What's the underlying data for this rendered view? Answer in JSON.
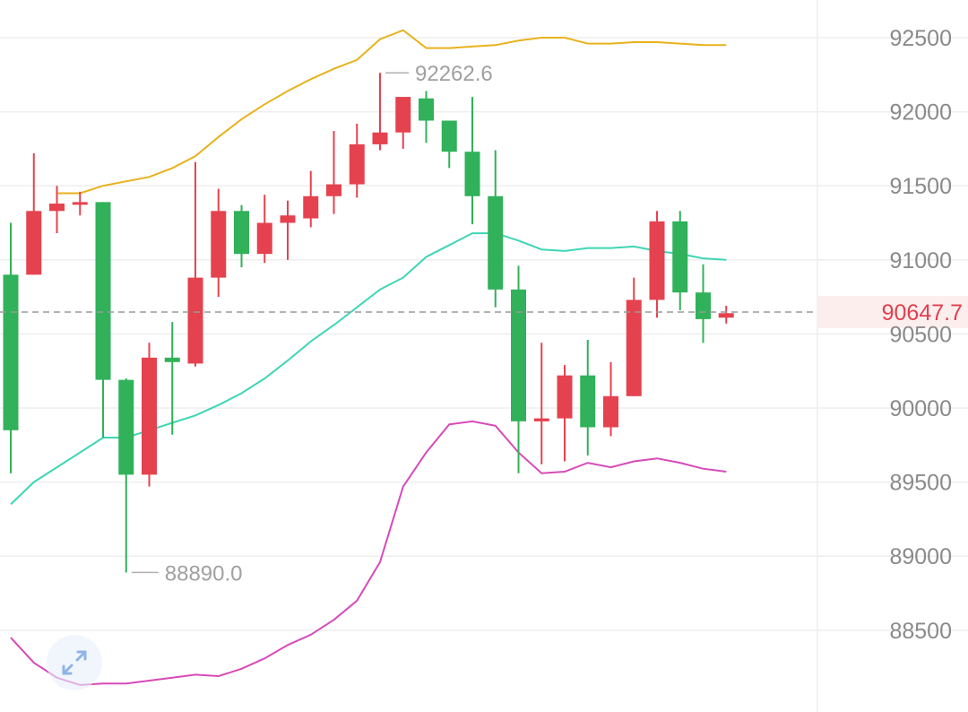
{
  "chart_data": {
    "type": "candlestick",
    "y_axis": {
      "range": [
        88150,
        92750
      ],
      "ticks": [
        92500,
        92000,
        91500,
        91000,
        90500,
        90000,
        89500,
        89000,
        88500
      ],
      "position": "right"
    },
    "grid": true,
    "last_price": {
      "value": 90647.7,
      "label": "90647.7"
    },
    "max_label": {
      "value": 92262.6,
      "label": "92262.6"
    },
    "min_label": {
      "value": 88890.0,
      "label": "88890.0"
    },
    "candles": [
      {
        "o": 90900,
        "h": 91250,
        "l": 89560,
        "c": 89850
      },
      {
        "o": 90900,
        "h": 91720,
        "l": 90900,
        "c": 91330
      },
      {
        "o": 91330,
        "h": 91500,
        "l": 91180,
        "c": 91380
      },
      {
        "o": 91380,
        "h": 91460,
        "l": 91300,
        "c": 91390
      },
      {
        "o": 91390,
        "h": 91390,
        "l": 89800,
        "c": 90190
      },
      {
        "o": 90190,
        "h": 90200,
        "l": 88890,
        "c": 89550
      },
      {
        "o": 89550,
        "h": 90440,
        "l": 89470,
        "c": 90340
      },
      {
        "o": 90340,
        "h": 90580,
        "l": 89820,
        "c": 90310
      },
      {
        "o": 90300,
        "h": 91660,
        "l": 90280,
        "c": 90880
      },
      {
        "o": 90880,
        "h": 91480,
        "l": 90750,
        "c": 91330
      },
      {
        "o": 91330,
        "h": 91370,
        "l": 90950,
        "c": 91040
      },
      {
        "o": 91040,
        "h": 91440,
        "l": 90980,
        "c": 91250
      },
      {
        "o": 91250,
        "h": 91400,
        "l": 91000,
        "c": 91300
      },
      {
        "o": 91280,
        "h": 91600,
        "l": 91220,
        "c": 91430
      },
      {
        "o": 91430,
        "h": 91870,
        "l": 91310,
        "c": 91510
      },
      {
        "o": 91510,
        "h": 91920,
        "l": 91420,
        "c": 91780
      },
      {
        "o": 91780,
        "h": 92262.6,
        "l": 91740,
        "c": 91860
      },
      {
        "o": 91860,
        "h": 92100,
        "l": 91750,
        "c": 92100
      },
      {
        "o": 92090,
        "h": 92140,
        "l": 91790,
        "c": 91940
      },
      {
        "o": 91940,
        "h": 91940,
        "l": 91620,
        "c": 91730
      },
      {
        "o": 91730,
        "h": 92100,
        "l": 91240,
        "c": 91430
      },
      {
        "o": 91430,
        "h": 91740,
        "l": 90680,
        "c": 90800
      },
      {
        "o": 90800,
        "h": 90960,
        "l": 89560,
        "c": 89910
      },
      {
        "o": 89910,
        "h": 90440,
        "l": 89620,
        "c": 89930
      },
      {
        "o": 89930,
        "h": 90290,
        "l": 89640,
        "c": 90220
      },
      {
        "o": 90220,
        "h": 90460,
        "l": 89680,
        "c": 89870
      },
      {
        "o": 89870,
        "h": 90310,
        "l": 89810,
        "c": 90080
      },
      {
        "o": 90080,
        "h": 90880,
        "l": 90080,
        "c": 90730
      },
      {
        "o": 90730,
        "h": 91330,
        "l": 90610,
        "c": 91260
      },
      {
        "o": 91260,
        "h": 91330,
        "l": 90660,
        "c": 90780
      },
      {
        "o": 90780,
        "h": 90970,
        "l": 90440,
        "c": 90600
      },
      {
        "o": 90610,
        "h": 90690,
        "l": 90570,
        "c": 90640
      }
    ],
    "bollinger": {
      "upper": [
        null,
        null,
        91450,
        91450,
        91500,
        91530,
        91560,
        91620,
        91700,
        91830,
        91950,
        92050,
        92140,
        92220,
        92290,
        92350,
        92490,
        92550,
        92430,
        92430,
        92440,
        92450,
        92480,
        92500,
        92500,
        92460,
        92460,
        92470,
        92470,
        92460,
        92450,
        92450
      ],
      "middle": [
        89350,
        89500,
        89600,
        89700,
        89800,
        89800,
        89850,
        89900,
        89950,
        90020,
        90100,
        90200,
        90320,
        90450,
        90560,
        90680,
        90800,
        90880,
        91020,
        91100,
        91180,
        91180,
        91130,
        91070,
        91060,
        91080,
        91080,
        91090,
        91060,
        91040,
        91010,
        91000
      ],
      "lower": [
        88450,
        88280,
        88180,
        88130,
        88140,
        88140,
        88160,
        88180,
        88200,
        88190,
        88240,
        88310,
        88400,
        88470,
        88570,
        88700,
        88960,
        89470,
        89700,
        89890,
        89910,
        89880,
        89700,
        89560,
        89570,
        89630,
        89600,
        89640,
        89660,
        89630,
        89590,
        89570
      ]
    },
    "colors": {
      "up": "#e5424f",
      "down": "#30b15a",
      "upper_band": "#e8b21c",
      "middle_band": "#3fd6b4",
      "lower_band": "#d74ab8",
      "grid": "#eeeeee",
      "price_line": "#9a9a9a",
      "price_label_bg": "#fdeeee"
    }
  },
  "controls": {
    "expand_icon": "expand-diagonal-icon"
  }
}
